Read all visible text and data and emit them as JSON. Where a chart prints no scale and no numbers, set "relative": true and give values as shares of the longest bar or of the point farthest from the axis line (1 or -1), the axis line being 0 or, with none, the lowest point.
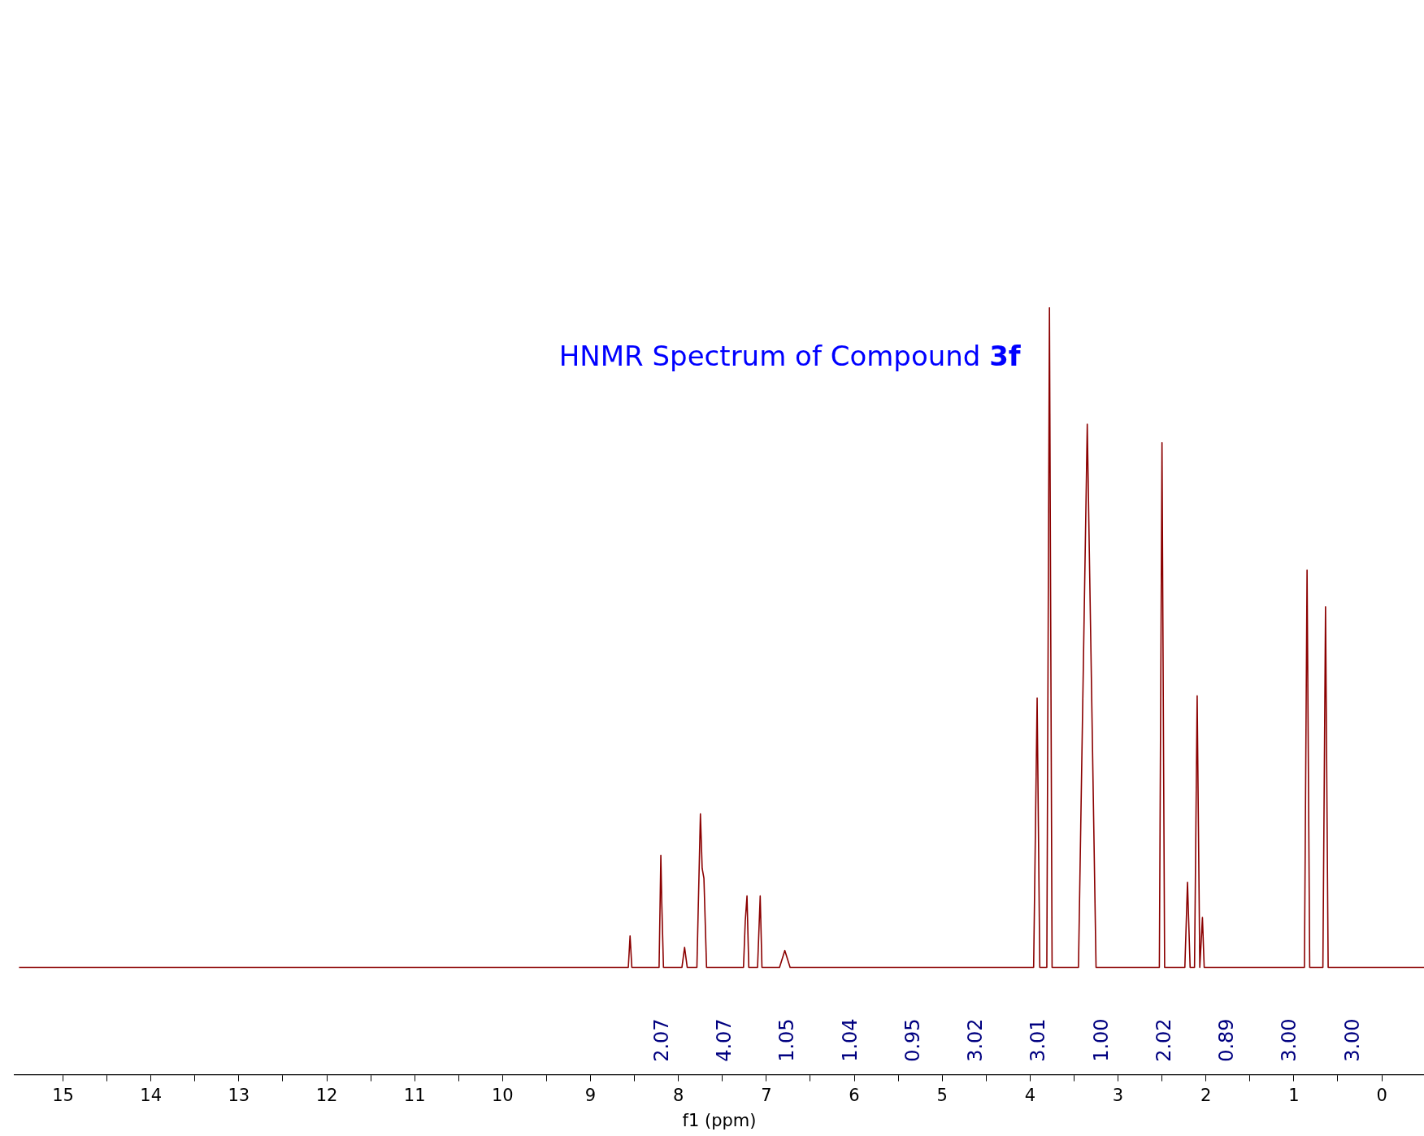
{
  "chart_data": {
    "type": "line",
    "title": "HNMR Spectrum of Compound 3f",
    "xlabel": "f1 (ppm)",
    "relative": true,
    "grid": false,
    "marker": "none",
    "x": [
      15.5,
      8.6,
      8.57,
      8.55,
      8.53,
      8.22,
      8.2,
      8.19,
      8.17,
      7.96,
      7.93,
      7.9,
      7.79,
      7.75,
      7.73,
      7.71,
      7.68,
      7.26,
      7.24,
      7.22,
      7.2,
      7.1,
      7.07,
      7.05,
      6.85,
      6.79,
      6.73,
      3.96,
      3.92,
      3.89,
      3.81,
      3.78,
      3.75,
      3.45,
      3.35,
      3.25,
      2.53,
      2.5,
      2.47,
      2.24,
      2.21,
      2.18,
      2.13,
      2.1,
      2.07,
      2.05,
      2.04,
      2.02,
      0.88,
      0.85,
      0.82,
      0.67,
      0.64,
      0.61,
      -0.48
    ],
    "series": [
      {
        "color": "#8b0000",
        "values": [
          0.14,
          0.14,
          0.14,
          0.181,
          0.14,
          0.14,
          0.286,
          0.226,
          0.14,
          0.14,
          0.166,
          0.14,
          0.14,
          0.34,
          0.269,
          0.256,
          0.14,
          0.14,
          0.2,
          0.233,
          0.14,
          0.14,
          0.233,
          0.14,
          0.14,
          0.162,
          0.14,
          0.14,
          0.491,
          0.14,
          0.14,
          1.0,
          0.14,
          0.14,
          0.848,
          0.14,
          0.14,
          0.824,
          0.14,
          0.14,
          0.251,
          0.14,
          0.14,
          0.494,
          0.14,
          0.183,
          0.205,
          0.14,
          0.14,
          0.658,
          0.14,
          0.14,
          0.61,
          0.14,
          0.14
        ]
      }
    ],
    "xlim": [
      15.55,
      -0.48
    ],
    "xticks": [
      15,
      {
        "value": 14.5,
        "label": null
      },
      14,
      {
        "value": 13.5,
        "label": null
      },
      13,
      {
        "value": 12.5,
        "label": null
      },
      12,
      {
        "value": 11.5,
        "label": null
      },
      11,
      {
        "value": 10.5,
        "label": null
      },
      10,
      {
        "value": 9.5,
        "label": null
      },
      9,
      {
        "value": 8.5,
        "label": null
      },
      8,
      {
        "value": 7.5,
        "label": null
      },
      7,
      {
        "value": 6.5,
        "label": null
      },
      6,
      {
        "value": 5.5,
        "label": null
      },
      5,
      {
        "value": 4.5,
        "label": null
      },
      4,
      {
        "value": 3.5,
        "label": null
      },
      3,
      {
        "value": 2.5,
        "label": null
      },
      2,
      {
        "value": 1.5,
        "label": null
      },
      1,
      {
        "value": 0.5,
        "label": null
      },
      0
    ],
    "tick_labels": "x",
    "annotations": [
      "2.07",
      "4.07",
      "1.05",
      "1.04",
      "0.95",
      "3.02",
      "3.01",
      "1.00",
      "2.02",
      "0.89",
      "3.00",
      "3.00"
    ]
  }
}
